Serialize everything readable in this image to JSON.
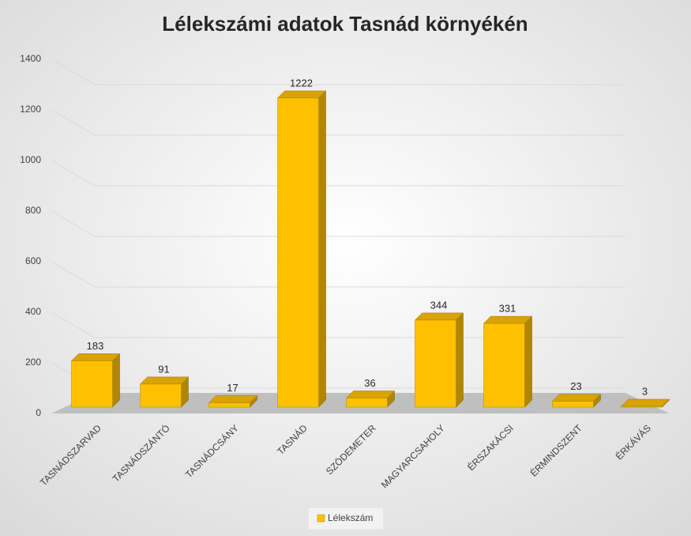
{
  "chart_data": {
    "type": "bar3d",
    "title": "Lélekszámi adatok Tasnád környékén",
    "categories": [
      "TASNÁDSZARVAD",
      "TASNÁDSZÁNTÓ",
      "TASNÁDCSÁNY",
      "TASNÁD",
      "SZÖDEMETER",
      "MAGYARCSAHOLY",
      "ÉRSZAKÁCSI",
      "ÉRMINDSZENT",
      "ÉRKÁVÁS"
    ],
    "series": [
      {
        "name": "Lélekszám",
        "color": "#ffc000",
        "values": [
          183,
          91,
          17,
          1222,
          36,
          344,
          331,
          23,
          3
        ]
      }
    ],
    "ylim": [
      0,
      1400
    ],
    "yticks": [
      0,
      200,
      400,
      600,
      800,
      1000,
      1200,
      1400
    ],
    "grid": true,
    "legend": "bottom"
  }
}
